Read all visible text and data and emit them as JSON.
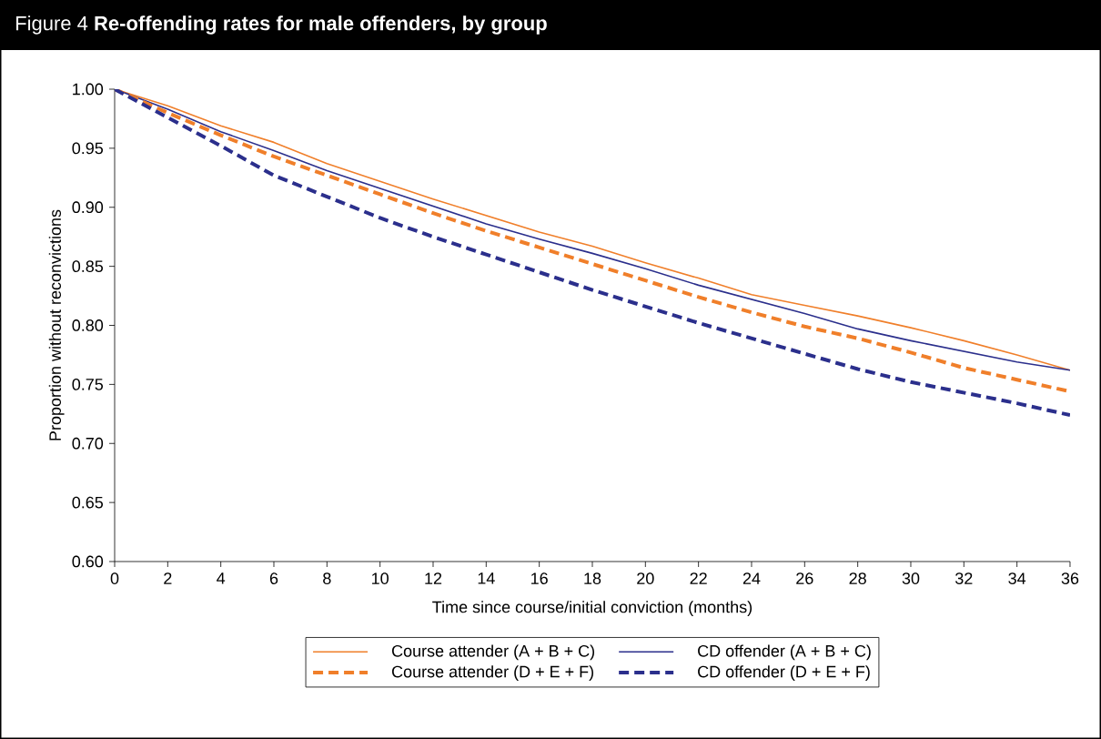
{
  "chart_data": {
    "type": "line",
    "title": "Figure 4 **Re-offending rates for male offenders, by group**",
    "xlabel": "Time since course/initial conviction (months)",
    "ylabel": "Proportion without reconvictions",
    "x": [
      0,
      2,
      4,
      6,
      8,
      10,
      12,
      14,
      16,
      18,
      20,
      22,
      24,
      26,
      28,
      30,
      32,
      34,
      36
    ],
    "series": [
      {
        "name": "Course attender (A + B + C)",
        "color": "#f07f2a",
        "line_style": "solid",
        "values": [
          1.0,
          0.986,
          0.969,
          0.955,
          0.937,
          0.922,
          0.907,
          0.893,
          0.879,
          0.867,
          0.853,
          0.84,
          0.826,
          0.817,
          0.808,
          0.798,
          0.787,
          0.775,
          0.762
        ]
      },
      {
        "name": "CD offender (A + B + C)",
        "color": "#2b2f8c",
        "line_style": "solid",
        "values": [
          1.0,
          0.983,
          0.964,
          0.948,
          0.931,
          0.916,
          0.901,
          0.886,
          0.873,
          0.861,
          0.848,
          0.834,
          0.822,
          0.81,
          0.797,
          0.787,
          0.778,
          0.769,
          0.762
        ]
      },
      {
        "name": "Course attender (D + E + F)",
        "color": "#f07f2a",
        "line_style": "dashed",
        "values": [
          1.0,
          0.98,
          0.961,
          0.943,
          0.927,
          0.911,
          0.895,
          0.88,
          0.866,
          0.852,
          0.838,
          0.824,
          0.811,
          0.799,
          0.789,
          0.777,
          0.764,
          0.754,
          0.744
        ]
      },
      {
        "name": "CD offender (D + E + F)",
        "color": "#2b2f8c",
        "line_style": "dashed",
        "values": [
          1.0,
          0.976,
          0.952,
          0.927,
          0.909,
          0.891,
          0.875,
          0.86,
          0.845,
          0.83,
          0.816,
          0.802,
          0.789,
          0.776,
          0.763,
          0.752,
          0.743,
          0.734,
          0.724
        ]
      }
    ],
    "xlim": [
      0,
      36
    ],
    "xticks": [
      0,
      2,
      4,
      6,
      8,
      10,
      12,
      14,
      16,
      18,
      20,
      22,
      24,
      26,
      28,
      30,
      32,
      34,
      36
    ],
    "ylim": [
      0.6,
      1.0
    ],
    "yticks": [
      {
        "value": 0.6,
        "label": "0.60"
      },
      {
        "value": 0.65,
        "label": "0.65"
      },
      {
        "value": 0.7,
        "label": "0.70"
      },
      {
        "value": 0.75,
        "label": "0.75"
      },
      {
        "value": 0.8,
        "label": "0.80"
      },
      {
        "value": 0.85,
        "label": "0.85"
      },
      {
        "value": 0.9,
        "label": "0.90"
      },
      {
        "value": 0.95,
        "label": "0.95"
      },
      {
        "value": 1.0,
        "label": "1.00"
      }
    ],
    "legend": "bottom",
    "grid": false,
    "marker": "none"
  }
}
